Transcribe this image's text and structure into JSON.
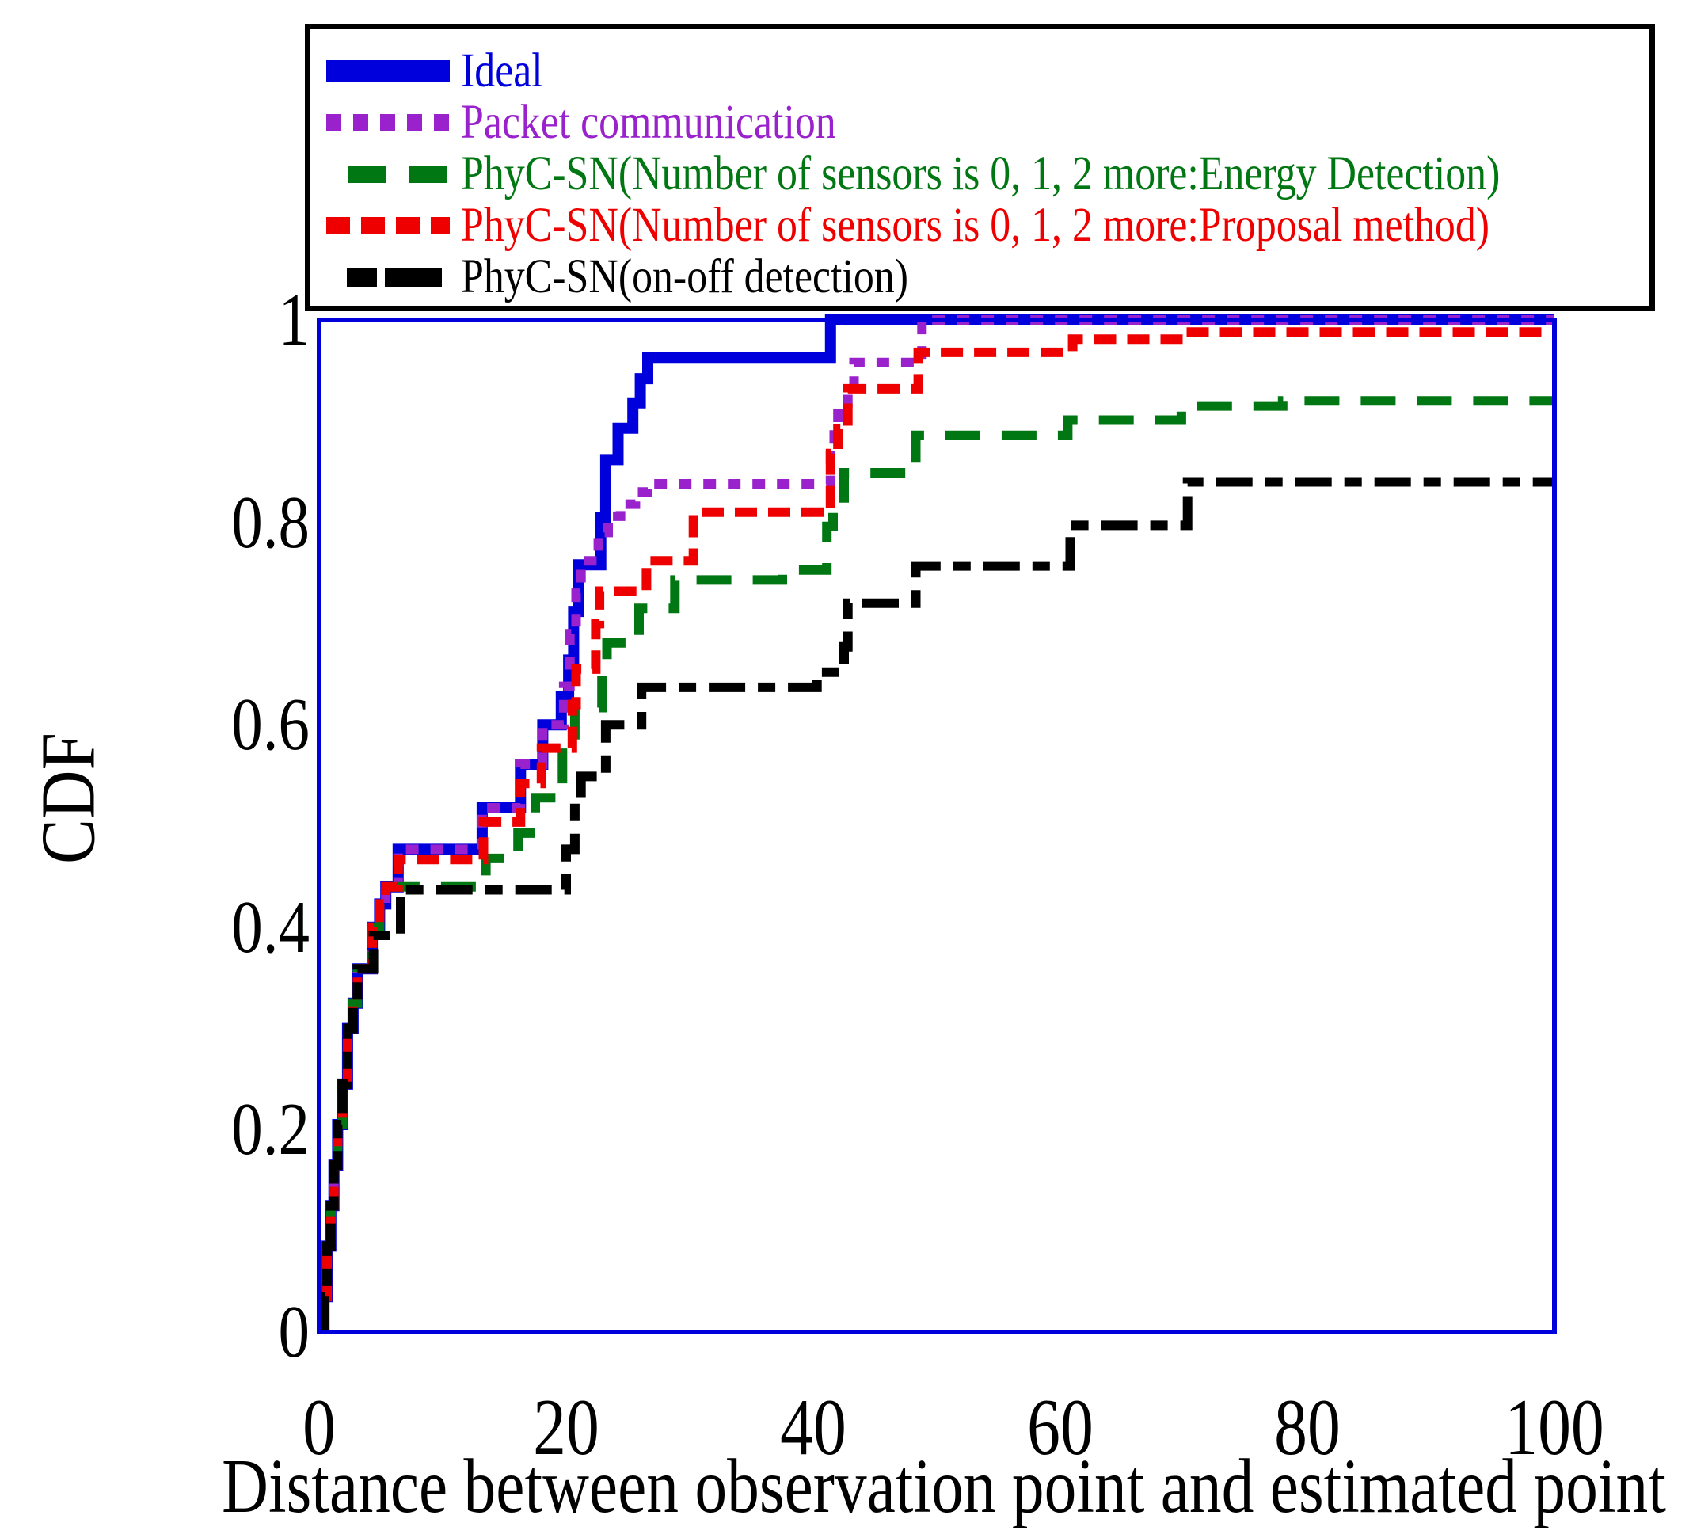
{
  "axes": {
    "x": {
      "label": "Distance between observation point and estimated point",
      "tick_values": [
        0,
        20,
        40,
        60,
        80,
        100
      ],
      "tick_labels": [
        "0",
        "20",
        "40",
        "60",
        "80",
        "100"
      ],
      "min": 0,
      "max": 100
    },
    "y": {
      "label": "CDF",
      "tick_values": [
        1,
        0.8,
        0.6,
        0.4,
        0.2,
        0
      ],
      "tick_labels": [
        "1",
        "0.8",
        "0.6",
        "0.4",
        "0.2",
        "0"
      ],
      "min": 0,
      "max": 1
    },
    "frame_color": "#0000dd"
  },
  "legend": {
    "border_color": "#000000",
    "position": "top"
  },
  "chart_data": {
    "type": "line",
    "subtype": "step-cdf",
    "title": "",
    "xlabel": "Distance between observation point and estimated point",
    "ylabel": "CDF",
    "xlim": [
      0,
      100
    ],
    "ylim": [
      0,
      1
    ],
    "grid": false,
    "legend_position": "top-inside-box",
    "series": [
      {
        "name": "Ideal",
        "color": "#0000dd",
        "line_style": "solid",
        "width": 14,
        "points": [
          [
            0.4,
            0
          ],
          [
            0.4,
            0.035
          ],
          [
            0.65,
            0.035
          ],
          [
            0.65,
            0.085
          ],
          [
            0.95,
            0.085
          ],
          [
            0.95,
            0.125
          ],
          [
            1.2,
            0.125
          ],
          [
            1.2,
            0.165
          ],
          [
            1.5,
            0.165
          ],
          [
            1.5,
            0.205
          ],
          [
            1.9,
            0.205
          ],
          [
            1.9,
            0.245
          ],
          [
            2.3,
            0.245
          ],
          [
            2.3,
            0.3
          ],
          [
            2.75,
            0.3
          ],
          [
            2.75,
            0.325
          ],
          [
            3.1,
            0.325
          ],
          [
            3.1,
            0.359
          ],
          [
            4.3,
            0.359
          ],
          [
            4.3,
            0.4
          ],
          [
            4.9,
            0.4
          ],
          [
            4.9,
            0.423
          ],
          [
            5.4,
            0.423
          ],
          [
            5.4,
            0.44
          ],
          [
            6.4,
            0.44
          ],
          [
            6.4,
            0.477
          ],
          [
            13.2,
            0.477
          ],
          [
            13.2,
            0.518
          ],
          [
            16.3,
            0.518
          ],
          [
            16.3,
            0.561
          ],
          [
            18.1,
            0.561
          ],
          [
            18.1,
            0.6
          ],
          [
            19.6,
            0.6
          ],
          [
            19.6,
            0.628
          ],
          [
            20.2,
            0.628
          ],
          [
            20.2,
            0.664
          ],
          [
            20.6,
            0.664
          ],
          [
            20.6,
            0.712
          ],
          [
            21.0,
            0.712
          ],
          [
            21.0,
            0.758
          ],
          [
            22.8,
            0.758
          ],
          [
            22.8,
            0.805
          ],
          [
            23.2,
            0.805
          ],
          [
            23.2,
            0.862
          ],
          [
            24.2,
            0.862
          ],
          [
            24.2,
            0.893
          ],
          [
            25.4,
            0.893
          ],
          [
            25.4,
            0.918
          ],
          [
            26.0,
            0.918
          ],
          [
            26.0,
            0.942
          ],
          [
            26.6,
            0.942
          ],
          [
            26.6,
            0.963
          ],
          [
            41.4,
            0.963
          ],
          [
            41.4,
            1.0
          ],
          [
            100,
            1.0
          ]
        ]
      },
      {
        "name": "Packet communication",
        "color": "#9a22cc",
        "line_style": "dotted",
        "width": 12,
        "points": [
          [
            0.4,
            0
          ],
          [
            0.4,
            0.035
          ],
          [
            0.65,
            0.035
          ],
          [
            0.65,
            0.085
          ],
          [
            0.95,
            0.085
          ],
          [
            0.95,
            0.125
          ],
          [
            1.2,
            0.125
          ],
          [
            1.2,
            0.165
          ],
          [
            1.5,
            0.165
          ],
          [
            1.5,
            0.205
          ],
          [
            1.9,
            0.205
          ],
          [
            1.9,
            0.245
          ],
          [
            2.3,
            0.245
          ],
          [
            2.3,
            0.3
          ],
          [
            2.75,
            0.3
          ],
          [
            2.75,
            0.325
          ],
          [
            3.1,
            0.325
          ],
          [
            3.1,
            0.359
          ],
          [
            4.3,
            0.359
          ],
          [
            4.3,
            0.4
          ],
          [
            4.9,
            0.4
          ],
          [
            4.9,
            0.423
          ],
          [
            5.4,
            0.423
          ],
          [
            5.4,
            0.44
          ],
          [
            6.4,
            0.44
          ],
          [
            6.4,
            0.477
          ],
          [
            13.2,
            0.477
          ],
          [
            13.2,
            0.518
          ],
          [
            16.3,
            0.518
          ],
          [
            16.3,
            0.561
          ],
          [
            18.1,
            0.561
          ],
          [
            18.1,
            0.6
          ],
          [
            19.8,
            0.6
          ],
          [
            19.8,
            0.638
          ],
          [
            20.3,
            0.638
          ],
          [
            20.3,
            0.69
          ],
          [
            20.8,
            0.69
          ],
          [
            20.8,
            0.73
          ],
          [
            21.2,
            0.73
          ],
          [
            21.2,
            0.762
          ],
          [
            22.6,
            0.762
          ],
          [
            22.6,
            0.79
          ],
          [
            23.4,
            0.79
          ],
          [
            23.4,
            0.806
          ],
          [
            24.4,
            0.806
          ],
          [
            24.4,
            0.818
          ],
          [
            25.6,
            0.818
          ],
          [
            25.6,
            0.83
          ],
          [
            26.6,
            0.83
          ],
          [
            26.6,
            0.838
          ],
          [
            41.4,
            0.838
          ],
          [
            41.4,
            0.872
          ],
          [
            41.7,
            0.872
          ],
          [
            41.7,
            0.897
          ],
          [
            42.0,
            0.897
          ],
          [
            42.0,
            0.912
          ],
          [
            42.8,
            0.912
          ],
          [
            42.8,
            0.933
          ],
          [
            43.3,
            0.933
          ],
          [
            43.3,
            0.958
          ],
          [
            48.8,
            0.958
          ],
          [
            48.8,
            1.0
          ],
          [
            100,
            1.0
          ]
        ]
      },
      {
        "name": "PhyC-SN(Number of sensors is 0, 1, 2 more:Energy Detection)",
        "color": "#007712",
        "line_style": "dashed",
        "width": 12,
        "points": [
          [
            0.4,
            0
          ],
          [
            0.4,
            0.035
          ],
          [
            0.65,
            0.035
          ],
          [
            0.65,
            0.085
          ],
          [
            0.95,
            0.085
          ],
          [
            0.95,
            0.125
          ],
          [
            1.2,
            0.125
          ],
          [
            1.2,
            0.165
          ],
          [
            1.5,
            0.165
          ],
          [
            1.5,
            0.205
          ],
          [
            1.9,
            0.205
          ],
          [
            1.9,
            0.245
          ],
          [
            2.3,
            0.245
          ],
          [
            2.3,
            0.3
          ],
          [
            2.75,
            0.3
          ],
          [
            2.75,
            0.325
          ],
          [
            3.1,
            0.325
          ],
          [
            3.1,
            0.359
          ],
          [
            4.3,
            0.359
          ],
          [
            4.3,
            0.4
          ],
          [
            4.9,
            0.4
          ],
          [
            4.9,
            0.44
          ],
          [
            13.5,
            0.44
          ],
          [
            13.5,
            0.468
          ],
          [
            16.1,
            0.468
          ],
          [
            16.1,
            0.493
          ],
          [
            17.5,
            0.493
          ],
          [
            17.5,
            0.528
          ],
          [
            19.7,
            0.528
          ],
          [
            19.7,
            0.579
          ],
          [
            20.7,
            0.579
          ],
          [
            20.7,
            0.617
          ],
          [
            22.9,
            0.617
          ],
          [
            22.9,
            0.66
          ],
          [
            23.3,
            0.66
          ],
          [
            23.3,
            0.681
          ],
          [
            25.9,
            0.681
          ],
          [
            25.9,
            0.715
          ],
          [
            28.8,
            0.715
          ],
          [
            28.8,
            0.743
          ],
          [
            37.5,
            0.743
          ],
          [
            37.5,
            0.753
          ],
          [
            41.1,
            0.753
          ],
          [
            41.1,
            0.796
          ],
          [
            41.6,
            0.796
          ],
          [
            41.6,
            0.814
          ],
          [
            42.5,
            0.814
          ],
          [
            42.5,
            0.849
          ],
          [
            48.3,
            0.849
          ],
          [
            48.3,
            0.886
          ],
          [
            60.6,
            0.886
          ],
          [
            60.6,
            0.901
          ],
          [
            69.8,
            0.901
          ],
          [
            69.8,
            0.915
          ],
          [
            78.0,
            0.915
          ],
          [
            78.0,
            0.92
          ],
          [
            100,
            0.92
          ]
        ]
      },
      {
        "name": "PhyC-SN(Number of sensors is 0, 1, 2 more:Proposal method)",
        "color": "#ee0000",
        "line_style": "short-dashed",
        "width": 12,
        "points": [
          [
            0.4,
            0
          ],
          [
            0.4,
            0.035
          ],
          [
            0.65,
            0.035
          ],
          [
            0.65,
            0.085
          ],
          [
            0.95,
            0.085
          ],
          [
            0.95,
            0.125
          ],
          [
            1.2,
            0.125
          ],
          [
            1.2,
            0.165
          ],
          [
            1.5,
            0.165
          ],
          [
            1.5,
            0.205
          ],
          [
            1.9,
            0.205
          ],
          [
            1.9,
            0.245
          ],
          [
            2.3,
            0.245
          ],
          [
            2.3,
            0.3
          ],
          [
            2.75,
            0.3
          ],
          [
            2.75,
            0.325
          ],
          [
            3.1,
            0.325
          ],
          [
            3.1,
            0.359
          ],
          [
            4.3,
            0.359
          ],
          [
            4.3,
            0.4
          ],
          [
            4.9,
            0.4
          ],
          [
            4.9,
            0.423
          ],
          [
            5.4,
            0.423
          ],
          [
            5.4,
            0.44
          ],
          [
            6.4,
            0.44
          ],
          [
            6.4,
            0.467
          ],
          [
            13.3,
            0.467
          ],
          [
            13.3,
            0.504
          ],
          [
            16.3,
            0.504
          ],
          [
            16.3,
            0.542
          ],
          [
            18.0,
            0.542
          ],
          [
            18.0,
            0.577
          ],
          [
            20.5,
            0.577
          ],
          [
            20.5,
            0.62
          ],
          [
            20.8,
            0.62
          ],
          [
            20.8,
            0.655
          ],
          [
            22.4,
            0.655
          ],
          [
            22.4,
            0.7
          ],
          [
            22.7,
            0.7
          ],
          [
            22.7,
            0.732
          ],
          [
            26.5,
            0.732
          ],
          [
            26.5,
            0.762
          ],
          [
            30.3,
            0.762
          ],
          [
            30.3,
            0.81
          ],
          [
            41.4,
            0.81
          ],
          [
            41.4,
            0.868
          ],
          [
            42.0,
            0.868
          ],
          [
            42.0,
            0.892
          ],
          [
            42.8,
            0.892
          ],
          [
            42.8,
            0.932
          ],
          [
            48.5,
            0.932
          ],
          [
            48.5,
            0.968
          ],
          [
            61.0,
            0.968
          ],
          [
            61.0,
            0.981
          ],
          [
            70.0,
            0.981
          ],
          [
            70.0,
            0.988
          ],
          [
            100,
            0.988
          ]
        ]
      },
      {
        "name": "PhyC-SN(on-off detection)",
        "color": "#000000",
        "line_style": "dash-dot",
        "width": 12,
        "points": [
          [
            0.4,
            0
          ],
          [
            0.4,
            0.035
          ],
          [
            0.65,
            0.035
          ],
          [
            0.65,
            0.085
          ],
          [
            0.95,
            0.085
          ],
          [
            0.95,
            0.125
          ],
          [
            1.2,
            0.125
          ],
          [
            1.2,
            0.165
          ],
          [
            1.5,
            0.165
          ],
          [
            1.5,
            0.205
          ],
          [
            1.9,
            0.205
          ],
          [
            1.9,
            0.245
          ],
          [
            2.3,
            0.245
          ],
          [
            2.3,
            0.3
          ],
          [
            2.75,
            0.3
          ],
          [
            2.75,
            0.325
          ],
          [
            3.1,
            0.325
          ],
          [
            3.1,
            0.359
          ],
          [
            4.4,
            0.359
          ],
          [
            4.4,
            0.392
          ],
          [
            6.6,
            0.392
          ],
          [
            6.6,
            0.437
          ],
          [
            20.0,
            0.437
          ],
          [
            20.0,
            0.477
          ],
          [
            20.7,
            0.477
          ],
          [
            20.7,
            0.528
          ],
          [
            21.2,
            0.528
          ],
          [
            21.2,
            0.549
          ],
          [
            23.2,
            0.549
          ],
          [
            23.2,
            0.6
          ],
          [
            26.1,
            0.6
          ],
          [
            26.1,
            0.637
          ],
          [
            40.3,
            0.637
          ],
          [
            40.3,
            0.652
          ],
          [
            42.5,
            0.652
          ],
          [
            42.5,
            0.677
          ],
          [
            42.8,
            0.677
          ],
          [
            42.8,
            0.72
          ],
          [
            48.3,
            0.72
          ],
          [
            48.3,
            0.757
          ],
          [
            60.8,
            0.757
          ],
          [
            60.8,
            0.797
          ],
          [
            70.3,
            0.797
          ],
          [
            70.3,
            0.84
          ],
          [
            100,
            0.84
          ]
        ]
      }
    ]
  }
}
